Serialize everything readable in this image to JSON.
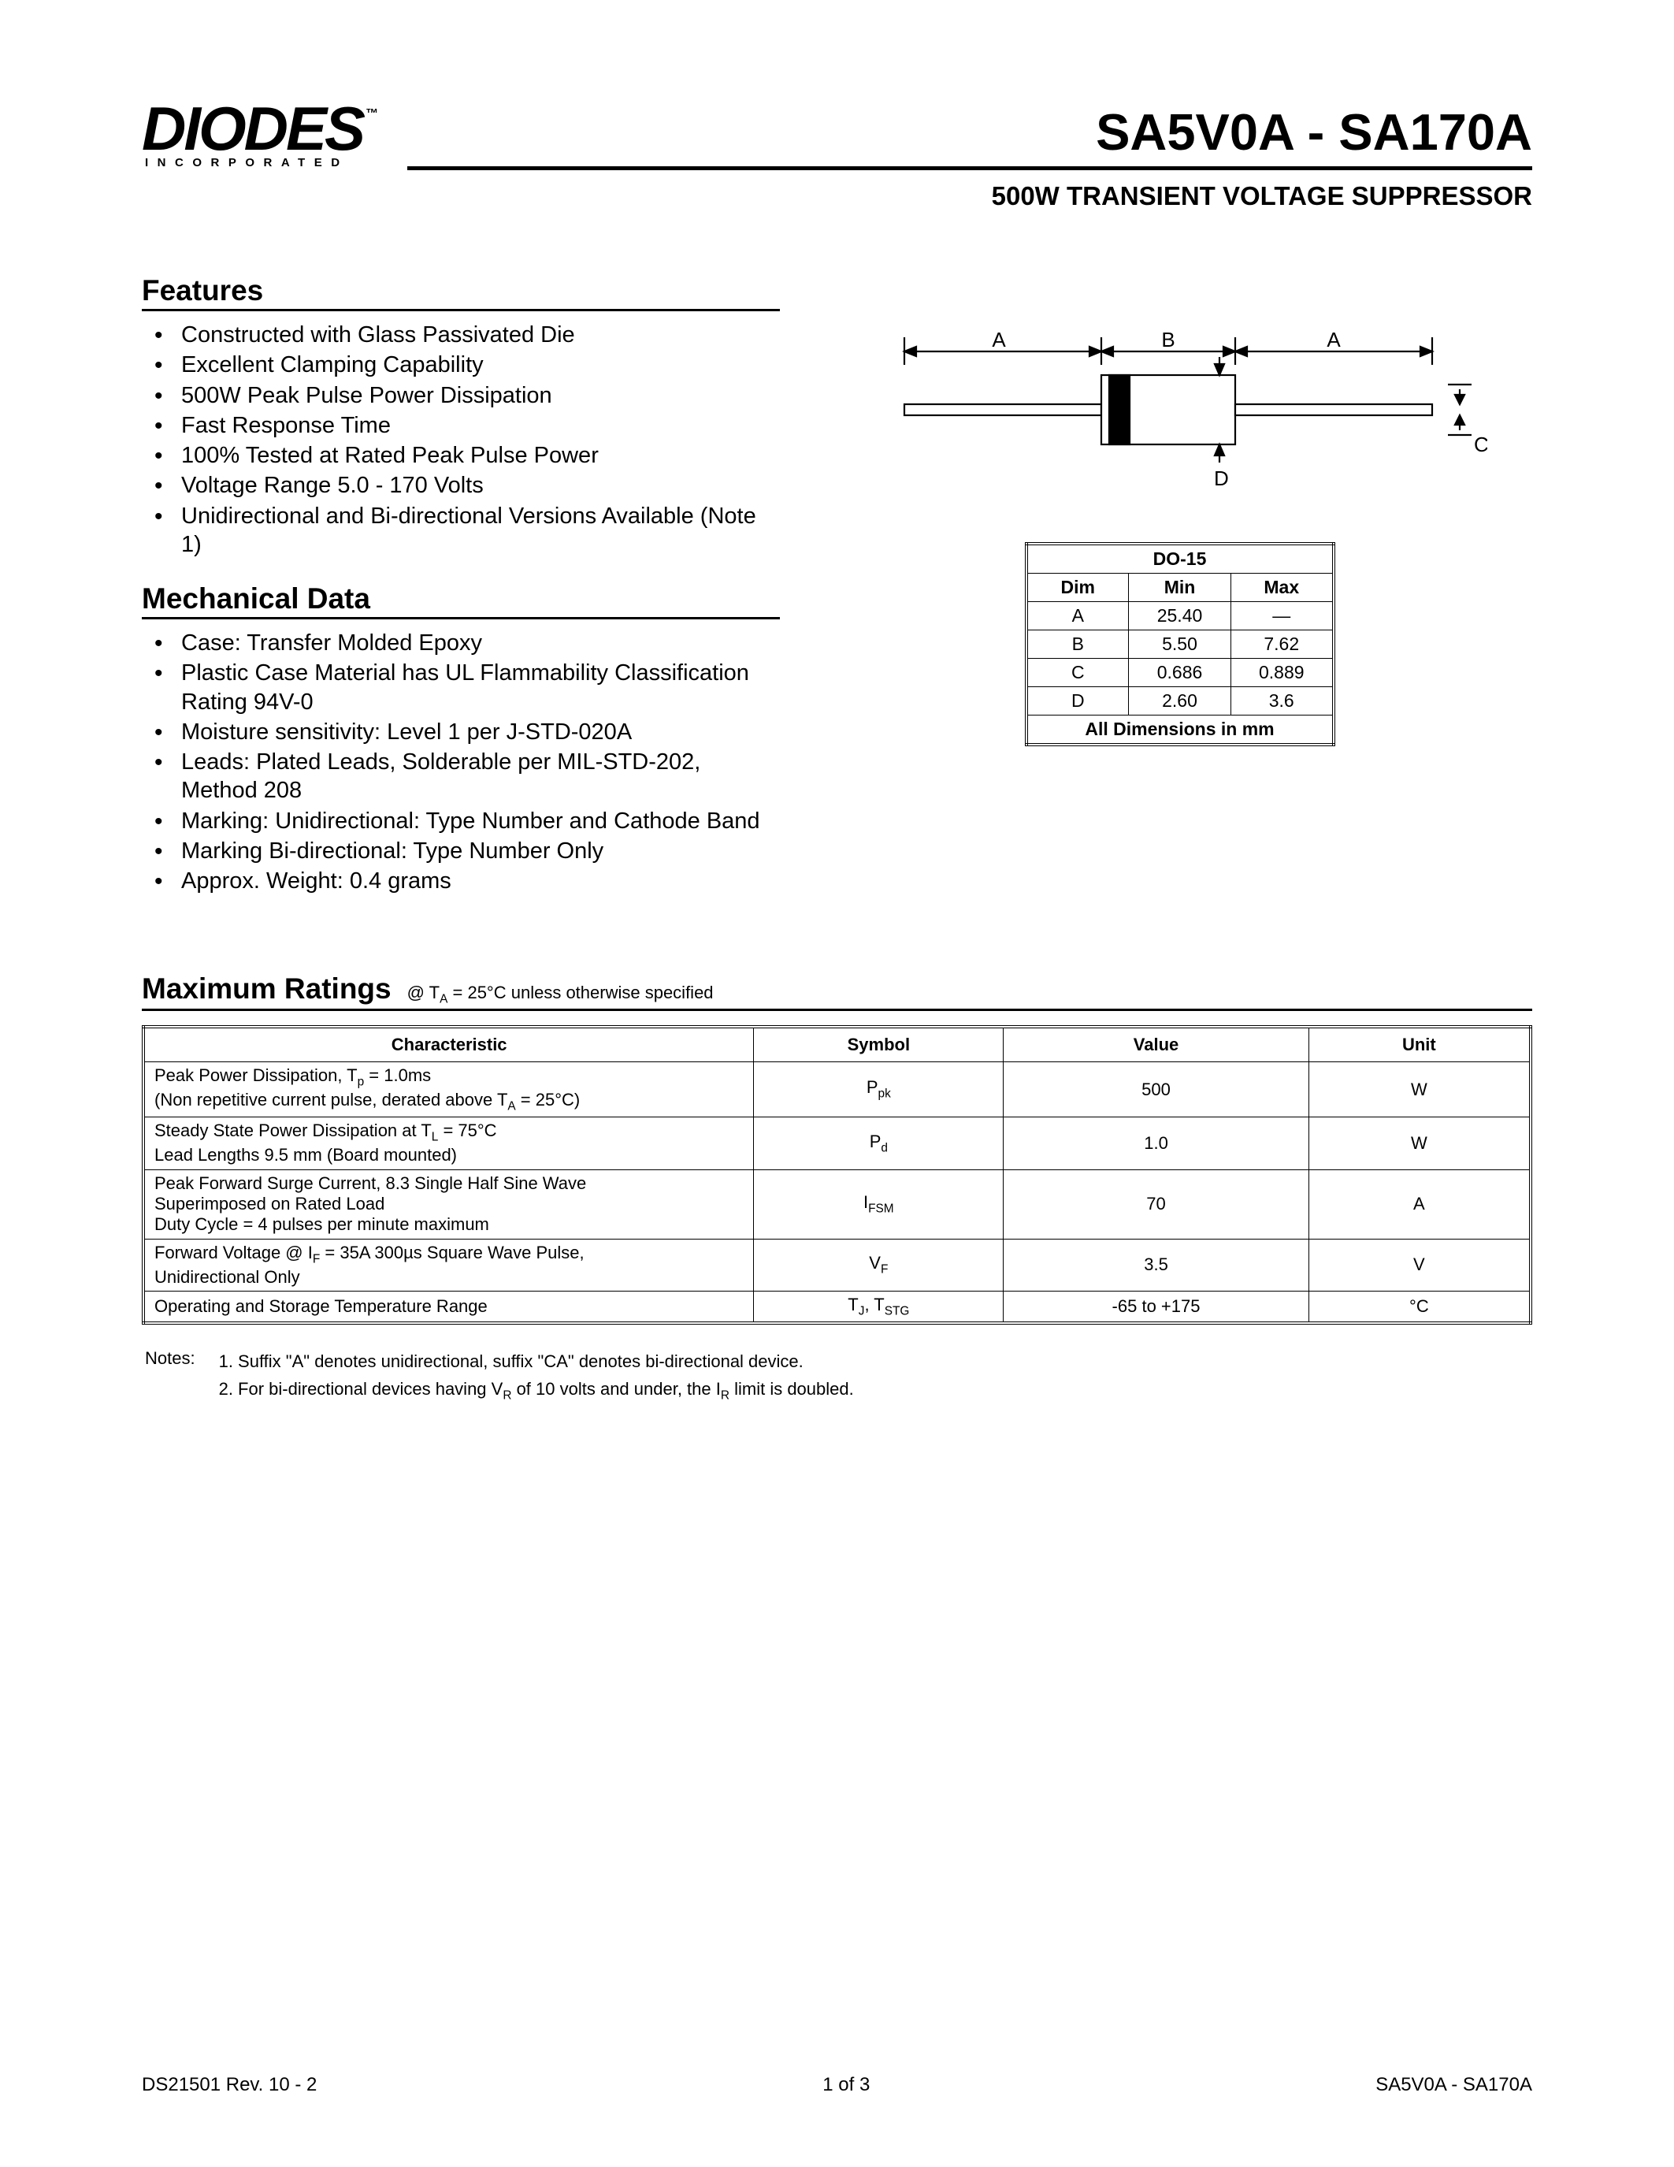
{
  "logo": {
    "text": "DIODES",
    "trademark": "™",
    "tagline": "INCORPORATED"
  },
  "title": {
    "main": "SA5V0A - SA170A",
    "sub": "500W TRANSIENT VOLTAGE SUPPRESSOR"
  },
  "features": {
    "heading": "Features",
    "items": [
      "Constructed with Glass Passivated Die",
      "Excellent Clamping Capability",
      "500W Peak Pulse Power Dissipation",
      "Fast Response Time",
      "100% Tested at Rated Peak Pulse Power",
      "Voltage Range 5.0 - 170 Volts",
      "Unidirectional and Bi-directional Versions Available (Note 1)"
    ]
  },
  "mechanical": {
    "heading": "Mechanical Data",
    "items": [
      "Case: Transfer Molded Epoxy",
      "Plastic Case Material has UL Flammability Classification Rating 94V-0",
      "Moisture sensitivity: Level 1 per J-STD-020A",
      "Leads: Plated Leads, Solderable per MIL-STD-202, Method 208",
      "Marking: Unidirectional: Type Number and Cathode Band",
      "Marking Bi-directional: Type Number Only",
      "Approx. Weight: 0.4 grams"
    ]
  },
  "diagram": {
    "labels": {
      "A1": "A",
      "B": "B",
      "A2": "A",
      "C": "C",
      "D": "D"
    },
    "colors": {
      "stroke": "#000000",
      "fill_body": "#ffffff",
      "fill_band": "#000000"
    }
  },
  "dim_table": {
    "title": "DO-15",
    "headers": [
      "Dim",
      "Min",
      "Max"
    ],
    "rows": [
      [
        "A",
        "25.40",
        "—"
      ],
      [
        "B",
        "5.50",
        "7.62"
      ],
      [
        "C",
        "0.686",
        "0.889"
      ],
      [
        "D",
        "2.60",
        "3.6"
      ]
    ],
    "footer": "All Dimensions in mm"
  },
  "ratings": {
    "heading": "Maximum Ratings",
    "condition_prefix": "@ T",
    "condition_sub": "A",
    "condition_rest": " = 25°C unless otherwise specified",
    "headers": [
      "Characteristic",
      "Symbol",
      "Value",
      "Unit"
    ],
    "rows": [
      {
        "char_l1": "Peak Power Dissipation, T<sub>p</sub> = 1.0ms",
        "char_l2": "(Non repetitive current pulse, derated above T<sub>A</sub> = 25°C)",
        "symbol": "P<sub>pk</sub>",
        "value": "500",
        "unit": "W"
      },
      {
        "char_l1": "Steady State Power Dissipation at T<sub>L</sub> = 75°C",
        "char_l2": "Lead Lengths 9.5 mm (Board mounted)",
        "symbol": "P<sub>d</sub>",
        "value": "1.0",
        "unit": "W"
      },
      {
        "char_l1": "Peak Forward Surge Current, 8.3 Single Half Sine Wave",
        "char_l2": "Superimposed on Rated Load",
        "char_l3": "Duty Cycle = 4 pulses per minute maximum",
        "symbol": "I<sub>FSM</sub>",
        "value": "70",
        "unit": "A"
      },
      {
        "char_l1": "Forward Voltage @ I<sub>F</sub> = 35A 300µs Square Wave Pulse,",
        "char_l2": "Unidirectional Only",
        "symbol": "V<sub>F</sub>",
        "value": "3.5",
        "unit": "V"
      },
      {
        "char_l1": "Operating and Storage Temperature Range",
        "symbol": "T<sub>J</sub>, T<sub>STG</sub>",
        "value": "-65 to +175",
        "unit": "°C"
      }
    ]
  },
  "notes": {
    "label": "Notes:",
    "items": [
      "1. Suffix \"A\" denotes unidirectional, suffix \"CA\" denotes bi-directional device.",
      "2. For bi-directional devices having V<sub>R</sub> of 10 volts and under, the I<sub>R</sub> limit is doubled."
    ]
  },
  "footer": {
    "left": "DS21501 Rev. 10 - 2",
    "center": "1 of 3",
    "right": "SA5V0A - SA170A"
  }
}
